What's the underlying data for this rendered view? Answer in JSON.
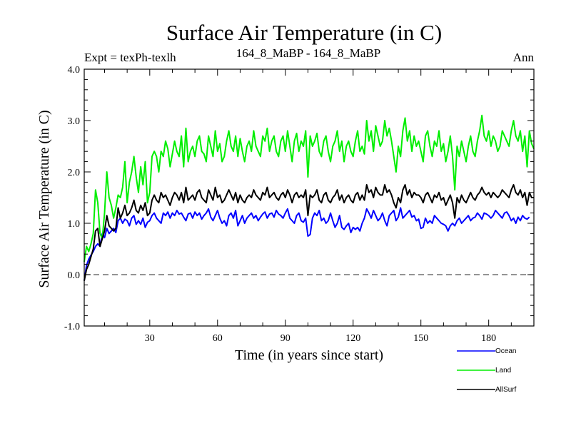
{
  "chart_data": {
    "type": "line",
    "title": "Surface Air Temperature (in C)",
    "header_left": "Expt = texPh-texlh",
    "header_center": "164_8_MaBP - 164_8_MaBP",
    "header_right": "Ann",
    "xlabel": "Time (in years since start)",
    "ylabel": "Surface Air Temperature (in C)",
    "xlim": [
      1,
      200
    ],
    "ylim": [
      -1.0,
      4.0
    ],
    "x_ticks": [
      30,
      60,
      90,
      120,
      150,
      180
    ],
    "x_tick_labels": [
      "30",
      "60",
      "90",
      "120",
      "150",
      "180"
    ],
    "y_ticks": [
      -1.0,
      0.0,
      1.0,
      2.0,
      3.0,
      4.0
    ],
    "y_tick_labels": [
      "-1.0",
      "0.0",
      "1.0",
      "2.0",
      "3.0",
      "4.0"
    ],
    "reference_line": 0.0,
    "legend_position": "bottom-right, below plot",
    "series": [
      {
        "name": "Ocean",
        "color": "#0000ff",
        "values": [
          -0.12,
          0.18,
          0.3,
          0.38,
          0.45,
          0.55,
          0.6,
          0.55,
          0.8,
          0.72,
          0.9,
          0.8,
          0.85,
          0.9,
          0.82,
          1.05,
          1.1,
          1.0,
          1.08,
          1.05,
          0.95,
          1.1,
          1.15,
          0.98,
          1.05,
          0.98,
          1.1,
          0.92,
          1.02,
          1.05,
          1.15,
          1.2,
          1.1,
          1.05,
          1.0,
          1.2,
          1.15,
          1.22,
          1.1,
          1.2,
          1.15,
          1.25,
          1.18,
          1.2,
          1.12,
          1.05,
          1.18,
          1.2,
          1.1,
          1.22,
          1.15,
          1.2,
          1.08,
          1.15,
          1.2,
          1.28,
          1.12,
          1.05,
          1.15,
          1.25,
          1.1,
          1.0,
          1.05,
          0.95,
          1.15,
          1.2,
          1.1,
          1.25,
          0.95,
          1.05,
          1.15,
          1.0,
          1.1,
          1.15,
          1.2,
          1.1,
          1.15,
          1.05,
          1.12,
          1.18,
          1.22,
          1.1,
          1.18,
          1.2,
          1.12,
          1.25,
          1.18,
          1.15,
          1.1,
          1.2,
          1.28,
          1.1,
          1.05,
          1.0,
          1.15,
          1.2,
          1.05,
          1.02,
          1.1,
          0.75,
          0.78,
          1.1,
          1.2,
          1.15,
          1.25,
          1.05,
          1.1,
          1.0,
          1.05,
          1.2,
          1.05,
          0.92,
          1.0,
          1.15,
          0.92,
          0.88,
          0.95,
          1.0,
          0.82,
          0.92,
          0.88,
          0.92,
          0.85,
          1.0,
          1.1,
          1.28,
          1.2,
          1.1,
          1.25,
          1.15,
          1.05,
          1.1,
          1.2,
          1.05,
          0.95,
          1.15,
          1.2,
          1.25,
          1.05,
          1.12,
          1.3,
          1.1,
          1.15,
          1.2,
          1.25,
          1.12,
          1.15,
          1.05,
          1.08,
          0.9,
          0.92,
          1.1,
          1.0,
          1.05,
          1.0,
          1.15,
          1.1,
          1.05,
          1.0,
          0.98,
          0.95,
          0.85,
          0.95,
          1.0,
          0.95,
          1.05,
          1.1,
          1.0,
          1.05,
          1.1,
          1.15,
          1.05,
          1.1,
          1.12,
          1.2,
          1.15,
          1.08,
          1.2,
          1.18,
          1.15,
          1.1,
          1.15,
          1.25,
          1.2,
          1.15,
          1.1,
          1.2,
          1.22,
          1.15,
          1.05,
          1.1,
          1.0,
          1.12,
          1.05,
          1.15,
          1.1,
          1.08,
          1.12
        ]
      },
      {
        "name": "Land",
        "color": "#00ee00",
        "values": [
          0.25,
          0.55,
          0.45,
          0.6,
          0.8,
          1.65,
          1.4,
          0.8,
          0.7,
          1.2,
          2.0,
          1.5,
          1.35,
          1.1,
          1.3,
          1.55,
          1.5,
          1.7,
          2.2,
          1.4,
          1.8,
          2.0,
          2.3,
          1.9,
          1.6,
          2.1,
          1.75,
          2.2,
          1.4,
          1.6,
          2.3,
          2.4,
          2.3,
          2.0,
          2.4,
          2.3,
          2.6,
          2.45,
          2.1,
          2.35,
          2.6,
          2.4,
          2.3,
          2.7,
          2.1,
          2.85,
          2.2,
          2.4,
          2.5,
          2.3,
          2.6,
          2.7,
          2.4,
          2.35,
          2.2,
          2.7,
          2.5,
          2.3,
          2.8,
          2.4,
          2.55,
          2.2,
          2.3,
          2.6,
          2.8,
          2.5,
          2.4,
          2.7,
          2.3,
          2.65,
          2.4,
          2.2,
          2.5,
          2.6,
          2.4,
          2.8,
          2.5,
          2.4,
          2.3,
          2.7,
          2.6,
          2.85,
          2.4,
          2.6,
          2.7,
          2.4,
          2.3,
          2.6,
          2.7,
          2.4,
          2.8,
          2.5,
          2.2,
          2.6,
          2.75,
          2.4,
          2.6,
          2.5,
          2.8,
          1.9,
          2.7,
          2.5,
          2.6,
          2.75,
          2.4,
          2.3,
          2.6,
          2.7,
          2.4,
          2.2,
          2.5,
          2.6,
          2.8,
          2.4,
          2.6,
          2.2,
          2.5,
          2.6,
          2.4,
          2.3,
          2.6,
          2.8,
          2.4,
          2.5,
          2.35,
          3.0,
          2.6,
          2.8,
          2.4,
          2.9,
          2.7,
          2.5,
          2.6,
          3.0,
          2.7,
          2.85,
          2.6,
          2.3,
          2.0,
          2.5,
          2.3,
          2.8,
          3.05,
          2.6,
          2.8,
          2.4,
          2.7,
          2.5,
          2.6,
          2.4,
          2.2,
          2.7,
          2.8,
          2.5,
          2.3,
          2.6,
          2.5,
          2.8,
          2.4,
          2.55,
          2.2,
          2.4,
          2.7,
          2.3,
          1.65,
          2.5,
          2.3,
          2.6,
          2.4,
          2.2,
          2.5,
          2.7,
          2.4,
          2.3,
          2.6,
          2.8,
          3.1,
          2.7,
          2.6,
          2.8,
          2.5,
          2.7,
          2.6,
          2.4,
          2.5,
          2.8,
          2.7,
          2.6,
          2.5,
          2.8,
          3.0,
          2.7,
          2.6,
          2.8,
          2.4,
          2.7,
          2.1,
          2.8,
          2.55,
          2.45
        ]
      },
      {
        "name": "AllSurf",
        "color": "#000000",
        "values": [
          -0.12,
          0.1,
          0.2,
          0.35,
          0.5,
          0.85,
          0.9,
          0.55,
          0.7,
          0.85,
          1.15,
          0.95,
          0.9,
          0.85,
          0.9,
          1.3,
          1.1,
          1.2,
          1.35,
          1.15,
          1.2,
          1.3,
          1.45,
          1.25,
          1.2,
          1.35,
          1.25,
          1.4,
          1.15,
          1.2,
          1.45,
          1.55,
          1.45,
          1.4,
          1.6,
          1.5,
          1.55,
          1.45,
          1.35,
          1.5,
          1.6,
          1.55,
          1.45,
          1.6,
          1.4,
          1.7,
          1.45,
          1.5,
          1.55,
          1.45,
          1.6,
          1.65,
          1.5,
          1.45,
          1.4,
          1.65,
          1.55,
          1.45,
          1.7,
          1.5,
          1.55,
          1.4,
          1.45,
          1.55,
          1.65,
          1.55,
          1.45,
          1.6,
          1.4,
          1.55,
          1.45,
          1.4,
          1.5,
          1.55,
          1.5,
          1.65,
          1.55,
          1.5,
          1.45,
          1.6,
          1.55,
          1.7,
          1.5,
          1.55,
          1.6,
          1.5,
          1.45,
          1.55,
          1.6,
          1.5,
          1.65,
          1.55,
          1.4,
          1.55,
          1.6,
          1.5,
          1.55,
          1.5,
          1.65,
          1.15,
          1.55,
          1.5,
          1.55,
          1.65,
          1.45,
          1.4,
          1.55,
          1.6,
          1.45,
          1.4,
          1.5,
          1.55,
          1.65,
          1.45,
          1.55,
          1.4,
          1.5,
          1.55,
          1.45,
          1.4,
          1.55,
          1.6,
          1.45,
          1.55,
          1.45,
          1.75,
          1.6,
          1.65,
          1.5,
          1.7,
          1.6,
          1.55,
          1.55,
          1.75,
          1.6,
          1.65,
          1.55,
          1.4,
          1.3,
          1.5,
          1.4,
          1.65,
          1.75,
          1.55,
          1.65,
          1.5,
          1.6,
          1.55,
          1.55,
          1.5,
          1.4,
          1.55,
          1.6,
          1.5,
          1.4,
          1.55,
          1.5,
          1.6,
          1.45,
          1.5,
          1.35,
          1.45,
          1.55,
          1.4,
          1.1,
          1.5,
          1.4,
          1.55,
          1.45,
          1.4,
          1.5,
          1.6,
          1.5,
          1.45,
          1.55,
          1.6,
          1.7,
          1.6,
          1.55,
          1.6,
          1.5,
          1.6,
          1.55,
          1.5,
          1.55,
          1.65,
          1.6,
          1.55,
          1.5,
          1.65,
          1.75,
          1.6,
          1.55,
          1.65,
          1.5,
          1.6,
          1.35,
          1.6,
          1.5,
          1.5
        ]
      }
    ]
  }
}
